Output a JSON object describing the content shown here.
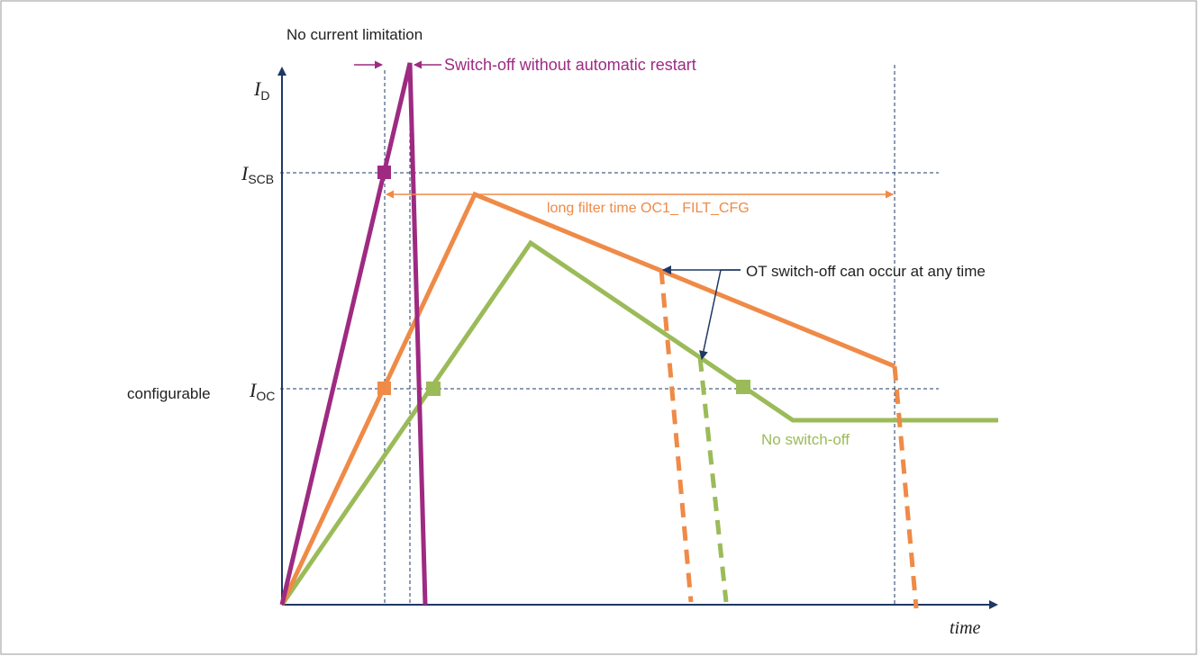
{
  "annotations": {
    "no_current_limitation": "No current limitation",
    "switch_off_without_restart": "Switch-off without automatic restart",
    "long_filter_time": "long filter time OC1_ FILT_CFG",
    "ot_switch_off": "OT switch-off can occur at any time",
    "no_switch_off": "No switch-off",
    "configurable": "configurable"
  },
  "axes": {
    "y_label": "I",
    "y_label_sub": "D",
    "x_label": "time",
    "levels": [
      {
        "main": "I",
        "sub": "SCB"
      },
      {
        "main": "I",
        "sub": "OC"
      }
    ]
  },
  "colors": {
    "purple": "#9e2a82",
    "orange": "#ef8a47",
    "green": "#9bbb59",
    "axis": "#1f3864",
    "dashed": "#1f3864",
    "text_dark": "#222222"
  }
}
